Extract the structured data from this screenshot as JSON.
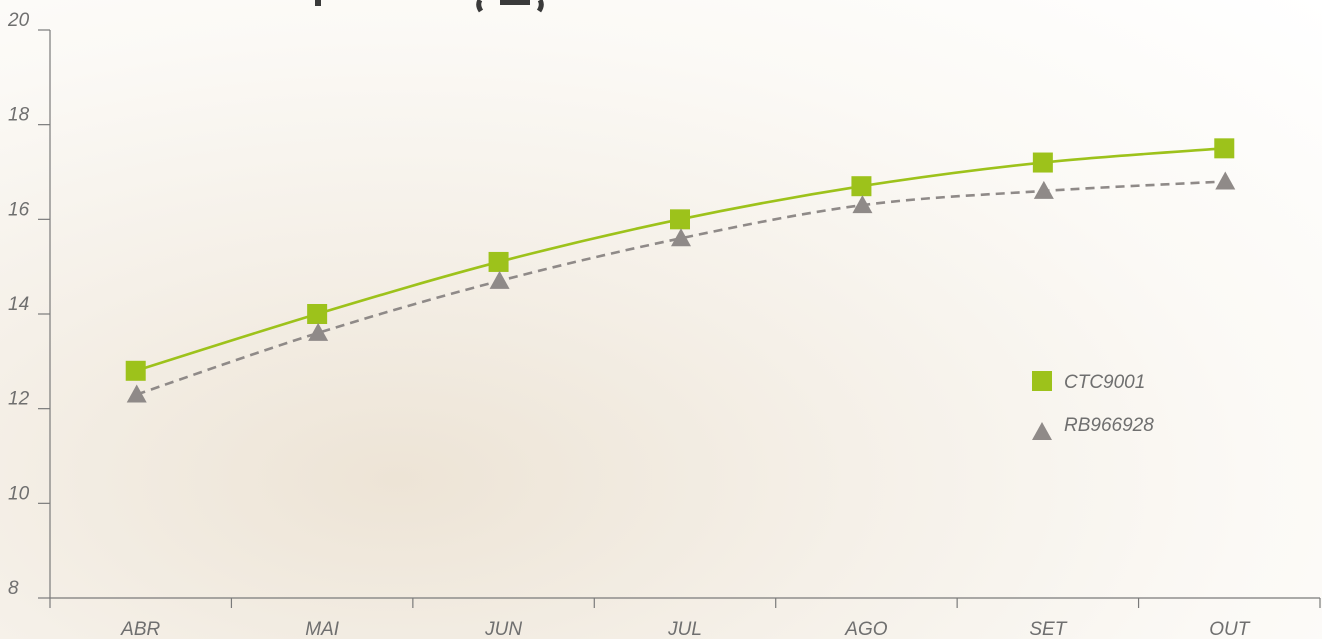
{
  "chart_data": {
    "type": "line",
    "title": "",
    "xlabel": "",
    "ylabel": "",
    "categories": [
      "ABR",
      "MAI",
      "JUN",
      "JUL",
      "AGO",
      "SET",
      "OUT"
    ],
    "ylim": [
      8,
      20
    ],
    "yticks": [
      "20",
      "18",
      "16",
      "14",
      "12",
      "10",
      "8"
    ],
    "grid": false,
    "legend_position": "right",
    "series": [
      {
        "name": "CTC9001",
        "values": [
          12.8,
          14.0,
          15.1,
          16.0,
          16.7,
          17.2,
          17.5
        ],
        "color": "#9dc21b",
        "marker": "square",
        "line_style": "solid"
      },
      {
        "name": "RB966928",
        "values": [
          12.3,
          13.6,
          14.7,
          15.6,
          16.3,
          16.6,
          16.8
        ],
        "color": "#8f8a88",
        "marker": "triangle",
        "line_style": "dashed"
      }
    ]
  }
}
